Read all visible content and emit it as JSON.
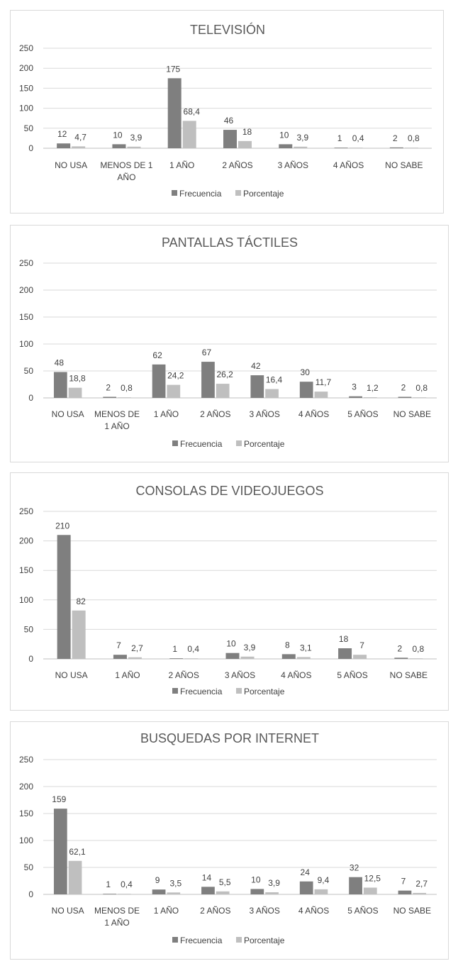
{
  "colors": {
    "frecuencia": "#7f7f7f",
    "porcentaje": "#bfbfbf"
  },
  "legend": [
    "Frecuencia",
    "Porcentaje"
  ],
  "chart_data": [
    {
      "type": "bar",
      "title": "TELEVISIÓN",
      "categories": [
        [
          "NO USA"
        ],
        [
          "MENOS DE 1",
          "AÑO"
        ],
        [
          "1 AÑO"
        ],
        [
          "2 AÑOS"
        ],
        [
          "3 AÑOS"
        ],
        [
          "4 AÑOS"
        ],
        [
          "NO SABE"
        ]
      ],
      "series": [
        {
          "name": "Frecuencia",
          "values": [
            12,
            10,
            175,
            46,
            10,
            1,
            2
          ],
          "labels": [
            "12",
            "10",
            "175",
            "46",
            "10",
            "1",
            "2"
          ]
        },
        {
          "name": "Porcentaje",
          "values": [
            4.7,
            3.9,
            68.4,
            18,
            3.9,
            0.4,
            0.8
          ],
          "labels": [
            "4,7",
            "3,9",
            "68,4",
            "18",
            "3,9",
            "0,4",
            "0,8"
          ]
        }
      ],
      "ylim": [
        0,
        250
      ],
      "yticks": [
        0,
        50,
        100,
        150,
        200,
        250
      ],
      "grid": true,
      "legend_position": "bottom"
    },
    {
      "type": "bar",
      "title": "PANTALLAS TÁCTILES",
      "categories": [
        [
          "NO USA"
        ],
        [
          "MENOS DE",
          "1 AÑO"
        ],
        [
          "1 AÑO"
        ],
        [
          "2 AÑOS"
        ],
        [
          "3 AÑOS"
        ],
        [
          "4 AÑOS"
        ],
        [
          "5 AÑOS"
        ],
        [
          "NO SABE"
        ]
      ],
      "series": [
        {
          "name": "Frecuencia",
          "values": [
            48,
            2,
            62,
            67,
            42,
            30,
            3,
            2
          ],
          "labels": [
            "48",
            "2",
            "62",
            "67",
            "42",
            "30",
            "3",
            "2"
          ]
        },
        {
          "name": "Porcentaje",
          "values": [
            18.8,
            0.8,
            24.2,
            26.2,
            16.4,
            11.7,
            1.2,
            0.8
          ],
          "labels": [
            "18,8",
            "0,8",
            "24,2",
            "26,2",
            "16,4",
            "11,7",
            "1,2",
            "0,8"
          ]
        }
      ],
      "ylim": [
        0,
        250
      ],
      "yticks": [
        0,
        50,
        100,
        150,
        200,
        250
      ],
      "grid": true,
      "legend_position": "bottom"
    },
    {
      "type": "bar",
      "title": "CONSOLAS DE VIDEOJUEGOS",
      "categories": [
        [
          "NO USA"
        ],
        [
          "1 AÑO"
        ],
        [
          "2 AÑOS"
        ],
        [
          "3 AÑOS"
        ],
        [
          "4 AÑOS"
        ],
        [
          "5 AÑOS"
        ],
        [
          "NO SABE"
        ]
      ],
      "series": [
        {
          "name": "Frecuencia",
          "values": [
            210,
            7,
            1,
            10,
            8,
            18,
            2
          ],
          "labels": [
            "210",
            "7",
            "1",
            "10",
            "8",
            "18",
            "2"
          ]
        },
        {
          "name": "Porcentaje",
          "values": [
            82,
            2.7,
            0.4,
            3.9,
            3.1,
            7,
            0.8
          ],
          "labels": [
            "82",
            "2,7",
            "0,4",
            "3,9",
            "3,1",
            "7",
            "0,8"
          ]
        }
      ],
      "ylim": [
        0,
        250
      ],
      "yticks": [
        0,
        50,
        100,
        150,
        200,
        250
      ],
      "grid": true,
      "legend_position": "bottom"
    },
    {
      "type": "bar",
      "title": "BUSQUEDAS POR INTERNET",
      "categories": [
        [
          "NO USA"
        ],
        [
          "MENOS DE",
          "1 AÑO"
        ],
        [
          "1 AÑO"
        ],
        [
          "2 AÑOS"
        ],
        [
          "3 AÑOS"
        ],
        [
          "4 AÑOS"
        ],
        [
          "5 AÑOS"
        ],
        [
          "NO SABE"
        ]
      ],
      "series": [
        {
          "name": "Frecuencia",
          "values": [
            159,
            1,
            9,
            14,
            10,
            24,
            32,
            7
          ],
          "labels": [
            "159",
            "1",
            "9",
            "14",
            "10",
            "24",
            "32",
            "7"
          ]
        },
        {
          "name": "Porcentaje",
          "values": [
            62.1,
            0.4,
            3.5,
            5.5,
            3.9,
            9.4,
            12.5,
            2.7
          ],
          "labels": [
            "62,1",
            "0,4",
            "3,5",
            "5,5",
            "3,9",
            "9,4",
            "12,5",
            "2,7"
          ]
        }
      ],
      "ylim": [
        0,
        250
      ],
      "yticks": [
        0,
        50,
        100,
        150,
        200,
        250
      ],
      "grid": true,
      "legend_position": "bottom"
    }
  ]
}
